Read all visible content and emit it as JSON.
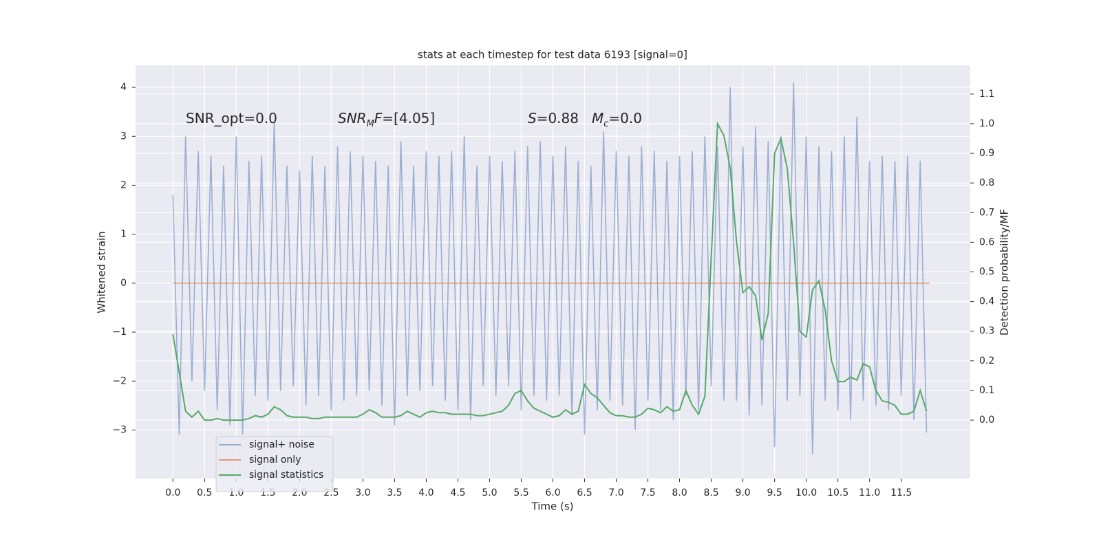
{
  "chart_data": {
    "type": "line",
    "title": "stats at each timestep for test data 6193 [signal=0]",
    "xlabel": "Time (s)",
    "ylabel": "Whitened strain",
    "y2label": "Detection probability/MF",
    "xlim": [
      -0.59,
      12.59
    ],
    "ylim": [
      -3.99,
      4.45
    ],
    "y2lim": [
      -0.197,
      1.197
    ],
    "xticks": [
      {
        "value": 0,
        "label": "0.0"
      },
      {
        "value": 0.5,
        "label": "0.5"
      },
      {
        "value": 1,
        "label": "1.0"
      },
      {
        "value": 1.5,
        "label": "1.5"
      },
      {
        "value": 2,
        "label": "2.0"
      },
      {
        "value": 2.5,
        "label": "2.5"
      },
      {
        "value": 3,
        "label": "3.0"
      },
      {
        "value": 3.5,
        "label": "3.5"
      },
      {
        "value": 4,
        "label": "4.0"
      },
      {
        "value": 4.5,
        "label": "4.5"
      },
      {
        "value": 5,
        "label": "5.0"
      },
      {
        "value": 5.5,
        "label": "5.5"
      },
      {
        "value": 6,
        "label": "6.0"
      },
      {
        "value": 6.5,
        "label": "6.5"
      },
      {
        "value": 7,
        "label": "7.0"
      },
      {
        "value": 7.5,
        "label": "7.5"
      },
      {
        "value": 8,
        "label": "8.0"
      },
      {
        "value": 8.5,
        "label": "8.5"
      },
      {
        "value": 9,
        "label": "9.0"
      },
      {
        "value": 9.5,
        "label": "9.5"
      },
      {
        "value": 10,
        "label": "10.0"
      },
      {
        "value": 10.5,
        "label": "10.5"
      },
      {
        "value": 11,
        "label": "11.0"
      },
      {
        "value": 11.5,
        "label": "11.5"
      }
    ],
    "yticks": [
      {
        "value": -3,
        "label": "−3"
      },
      {
        "value": -2,
        "label": "−2"
      },
      {
        "value": -1,
        "label": "−1"
      },
      0,
      1,
      2,
      3,
      4
    ],
    "y2ticks": [
      {
        "value": 0,
        "label": "0.0"
      },
      0.1,
      0.2,
      0.3,
      0.4,
      0.5,
      0.6,
      0.7,
      0.8,
      0.9,
      {
        "value": 1,
        "label": "1.0"
      },
      1.1
    ],
    "grid": true,
    "legend": "lower left",
    "annotations": [
      {
        "parts": [
          {
            "text": "SNR_opt=0.0"
          }
        ]
      },
      {
        "parts": [
          {
            "text": "SNR",
            "italic": true
          },
          {
            "text": "M",
            "italic": true,
            "sub": true
          },
          {
            "text": "F",
            "italic": true
          },
          {
            "text": "=[4.05]"
          }
        ]
      },
      {
        "parts": [
          {
            "text": "S",
            "italic": true
          },
          {
            "text": "=0.88"
          }
        ]
      },
      {
        "parts": [
          {
            "text": "M",
            "italic": true
          },
          {
            "text": "c",
            "italic": true,
            "sub": true
          },
          {
            "text": "=0.0"
          }
        ]
      }
    ],
    "series": [
      {
        "name": "signal+ noise",
        "color": "#4c72b0",
        "opacity": 0.5,
        "x": [
          0,
          0.1,
          0.2,
          0.3,
          0.4,
          0.5,
          0.6,
          0.7,
          0.8,
          0.9,
          1,
          1.1,
          1.2,
          1.3,
          1.4,
          1.5,
          1.6,
          1.7,
          1.8,
          1.9,
          2,
          2.1,
          2.2,
          2.3,
          2.4,
          2.5,
          2.6,
          2.7,
          2.8,
          2.9,
          3,
          3.1,
          3.2,
          3.3,
          3.4,
          3.5,
          3.6,
          3.7,
          3.8,
          3.9,
          4,
          4.1,
          4.2,
          4.3,
          4.4,
          4.5,
          4.6,
          4.7,
          4.8,
          4.9,
          5,
          5.1,
          5.2,
          5.3,
          5.4,
          5.5,
          5.6,
          5.7,
          5.8,
          5.9,
          6,
          6.1,
          6.2,
          6.3,
          6.4,
          6.5,
          6.6,
          6.7,
          6.8,
          6.9,
          7,
          7.1,
          7.2,
          7.3,
          7.4,
          7.5,
          7.6,
          7.7,
          7.8,
          7.9,
          8,
          8.1,
          8.2,
          8.3,
          8.4,
          8.5,
          8.6,
          8.7,
          8.8,
          8.9,
          9,
          9.1,
          9.2,
          9.3,
          9.4,
          9.5,
          9.6,
          9.7,
          9.8,
          9.9,
          10,
          10.1,
          10.2,
          10.3,
          10.4,
          10.5,
          10.6,
          10.7,
          10.8,
          10.9,
          11,
          11.1,
          11.2,
          11.3,
          11.4,
          11.5,
          11.6,
          11.7,
          11.8,
          11.9
        ],
        "values": [
          1.8,
          -3.1,
          3.0,
          -2.0,
          2.7,
          -2.2,
          2.6,
          -2.6,
          2.4,
          -2.9,
          3.0,
          -3.1,
          2.5,
          -2.3,
          2.6,
          -2.4,
          3.3,
          -2.2,
          2.4,
          -2.1,
          2.3,
          -2.5,
          2.6,
          -2.3,
          2.4,
          -2.6,
          2.8,
          -2.4,
          2.7,
          -2.3,
          2.6,
          -2.2,
          2.5,
          -2.5,
          2.4,
          -2.9,
          2.9,
          -2.3,
          2.4,
          -2.2,
          2.7,
          -2.1,
          2.6,
          -2.4,
          2.7,
          -2.6,
          3.0,
          -2.8,
          2.4,
          -2.1,
          2.6,
          -2.3,
          2.5,
          -2.1,
          2.7,
          -2.6,
          2.8,
          -2.3,
          2.9,
          -2.4,
          2.6,
          -2.3,
          2.8,
          -2.7,
          2.5,
          -3.1,
          2.4,
          -2.6,
          3.1,
          -2.4,
          2.7,
          -2.5,
          2.6,
          -3.0,
          2.8,
          -2.4,
          2.7,
          -2.6,
          2.5,
          -2.8,
          2.6,
          -2.3,
          2.7,
          -2.6,
          3.0,
          -2.1,
          2.8,
          -2.4,
          4.0,
          -2.4,
          2.8,
          -2.7,
          3.2,
          -2.5,
          2.9,
          -3.35,
          3.0,
          -2.4,
          4.1,
          -2.3,
          3.0,
          -3.5,
          2.8,
          -2.4,
          2.7,
          -2.6,
          3.0,
          -2.8,
          3.4,
          -2.4,
          2.5,
          -2.5,
          2.6,
          -2.6,
          2.5,
          -2.3,
          2.6,
          -2.8,
          2.5,
          -3.05
        ]
      },
      {
        "name": "signal only",
        "color": "#dd8452",
        "opacity": 0.8,
        "x": [
          0,
          11.95
        ],
        "values": [
          0,
          0
        ]
      },
      {
        "name": "signal statistics",
        "color": "#55a868",
        "opacity": 1,
        "axis": "y2",
        "x": [
          0,
          0.1,
          0.2,
          0.3,
          0.4,
          0.5,
          0.6,
          0.7,
          0.8,
          0.9,
          1,
          1.1,
          1.2,
          1.3,
          1.4,
          1.5,
          1.6,
          1.7,
          1.8,
          1.9,
          2,
          2.1,
          2.2,
          2.3,
          2.4,
          2.5,
          2.6,
          2.7,
          2.8,
          2.9,
          3,
          3.1,
          3.2,
          3.3,
          3.4,
          3.5,
          3.6,
          3.7,
          3.8,
          3.9,
          4,
          4.1,
          4.2,
          4.3,
          4.4,
          4.5,
          4.6,
          4.7,
          4.8,
          4.9,
          5,
          5.1,
          5.2,
          5.3,
          5.4,
          5.5,
          5.6,
          5.7,
          5.8,
          5.9,
          6,
          6.1,
          6.2,
          6.3,
          6.4,
          6.5,
          6.6,
          6.7,
          6.8,
          6.9,
          7,
          7.1,
          7.2,
          7.3,
          7.4,
          7.5,
          7.6,
          7.7,
          7.8,
          7.9,
          8,
          8.1,
          8.2,
          8.3,
          8.4,
          8.5,
          8.6,
          8.7,
          8.8,
          8.9,
          9,
          9.1,
          9.2,
          9.3,
          9.4,
          9.5,
          9.6,
          9.7,
          9.8,
          9.9,
          10,
          10.1,
          10.2,
          10.3,
          10.4,
          10.5,
          10.6,
          10.7,
          10.8,
          10.9,
          11,
          11.1,
          11.2,
          11.3,
          11.4,
          11.5,
          11.6,
          11.7,
          11.8,
          11.9
        ],
        "values": [
          0.29,
          0.16,
          0.03,
          0.01,
          0.03,
          0.0,
          0.0,
          0.005,
          0.0,
          0.0,
          0.0,
          0.0,
          0.005,
          0.015,
          0.01,
          0.02,
          0.045,
          0.035,
          0.015,
          0.01,
          0.01,
          0.01,
          0.005,
          0.005,
          0.01,
          0.01,
          0.01,
          0.01,
          0.01,
          0.01,
          0.02,
          0.035,
          0.025,
          0.01,
          0.01,
          0.01,
          0.015,
          0.03,
          0.02,
          0.01,
          0.025,
          0.03,
          0.025,
          0.025,
          0.02,
          0.02,
          0.02,
          0.02,
          0.015,
          0.015,
          0.02,
          0.025,
          0.03,
          0.05,
          0.09,
          0.1,
          0.065,
          0.04,
          0.03,
          0.02,
          0.01,
          0.015,
          0.035,
          0.02,
          0.03,
          0.12,
          0.09,
          0.075,
          0.05,
          0.025,
          0.015,
          0.015,
          0.01,
          0.01,
          0.02,
          0.04,
          0.035,
          0.025,
          0.045,
          0.03,
          0.035,
          0.1,
          0.05,
          0.02,
          0.08,
          0.55,
          1.0,
          0.96,
          0.85,
          0.6,
          0.43,
          0.45,
          0.42,
          0.27,
          0.36,
          0.9,
          0.95,
          0.85,
          0.6,
          0.3,
          0.28,
          0.44,
          0.47,
          0.37,
          0.2,
          0.13,
          0.13,
          0.145,
          0.135,
          0.19,
          0.18,
          0.1,
          0.065,
          0.06,
          0.05,
          0.02,
          0.02,
          0.03,
          0.1,
          0.03
        ]
      }
    ]
  }
}
